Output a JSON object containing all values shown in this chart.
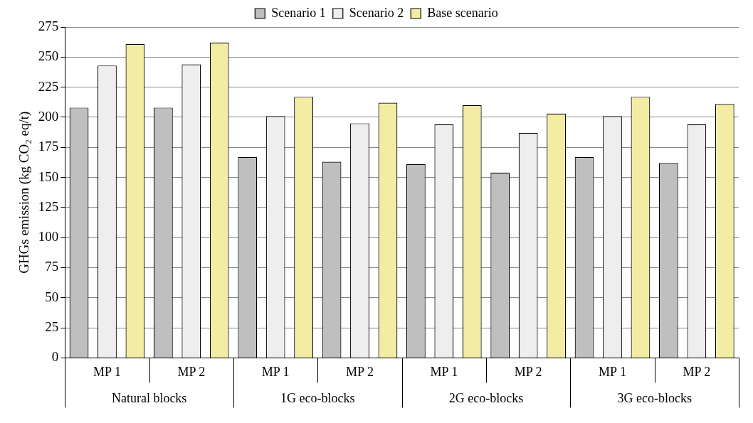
{
  "chart_data": {
    "type": "bar",
    "ylabel": "GHGs emission (kg CO₂ eq/t)",
    "categories": [
      "MP 1",
      "MP 2",
      "MP 1",
      "MP 2",
      "MP 1",
      "MP 2",
      "MP 1",
      "MP 2"
    ],
    "annotations": [
      "Natural blocks",
      "1G eco-blocks",
      "2G eco-blocks",
      "3G eco-blocks"
    ],
    "series": [
      {
        "name": "Scenario 1",
        "color": "#bfbfbf",
        "values": [
          208,
          208,
          167,
          163,
          161,
          154,
          167,
          162
        ]
      },
      {
        "name": "Scenario 2",
        "color": "#eeeeee",
        "values": [
          243,
          244,
          201,
          195,
          194,
          187,
          201,
          194
        ]
      },
      {
        "name": "Base scenario",
        "color": "#f3eca4",
        "values": [
          261,
          262,
          217,
          212,
          210,
          203,
          217,
          211
        ]
      }
    ],
    "ylim": [
      0,
      275
    ],
    "yticks": [
      0,
      25,
      50,
      75,
      100,
      125,
      150,
      175,
      200,
      225,
      250,
      275
    ],
    "grid": "y",
    "legend": "top"
  }
}
